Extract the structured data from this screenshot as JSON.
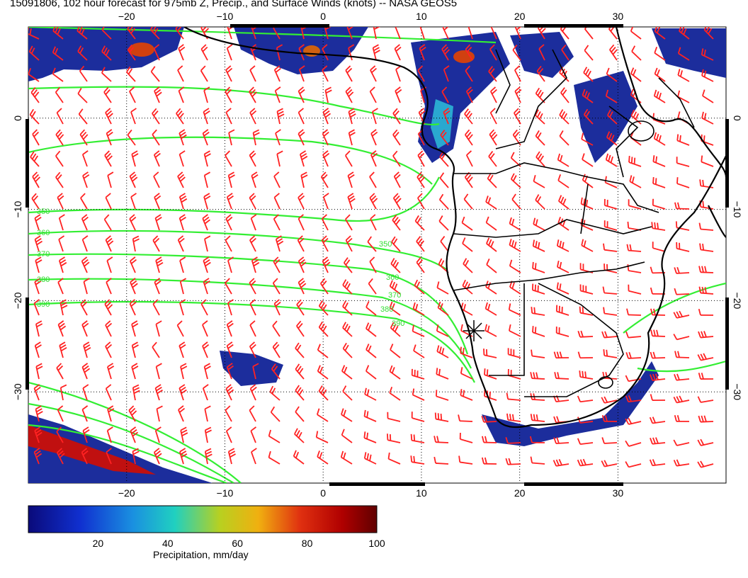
{
  "title": "15091806, 102 hour forecast for 975mb Z, Precip., and Surface Winds (knots) -- NASA GEOS5",
  "map": {
    "lon_range": [
      -30,
      41
    ],
    "lat_range": [
      -40,
      10
    ],
    "lon_ticks": [
      -20,
      -10,
      0,
      10,
      20,
      30
    ],
    "lat_ticks": [
      0,
      -10,
      -20,
      -30
    ],
    "lon_tick_labels": [
      "−20",
      "−10",
      "0",
      "10",
      "20",
      "30"
    ],
    "lat_tick_labels": [
      "0",
      "−10",
      "−20",
      "−30"
    ],
    "grid": "dotted",
    "marker": "asterisk-near-namibian-coast"
  },
  "contours": {
    "color": "#33ee33",
    "labels": [
      "350",
      "360",
      "370",
      "380",
      "390",
      "350",
      "360",
      "370",
      "380",
      "390"
    ]
  },
  "colorbar": {
    "label": "Precipitation, mm/day",
    "ticks": [
      "20",
      "40",
      "60",
      "80",
      "100"
    ],
    "range": [
      0,
      100
    ]
  },
  "colors": {
    "wind_barbs": "#ff2222",
    "coastline": "#000000",
    "precip_low": "#1a1a9e",
    "precip_high": "#8b0000"
  }
}
